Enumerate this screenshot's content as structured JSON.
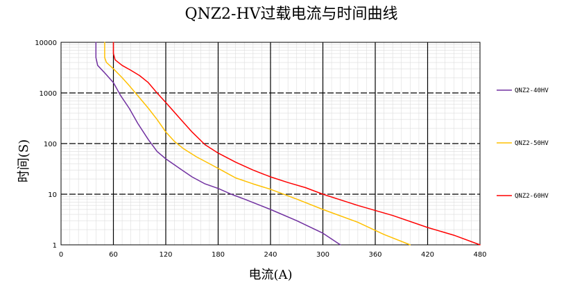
{
  "chart_data": {
    "type": "line",
    "title": "QNZ2-HV过载电流与时间曲线",
    "xlabel": "电流(A)",
    "ylabel": "时间(S)",
    "xscale": "linear",
    "yscale": "log",
    "xlim": [
      0,
      480
    ],
    "ylim": [
      1,
      10000
    ],
    "x_ticks": [
      0,
      60,
      120,
      180,
      240,
      300,
      360,
      420,
      480
    ],
    "x_tick_labels": [
      "0",
      "60",
      "120",
      "180",
      "240",
      "300",
      "360",
      "420",
      "480"
    ],
    "y_ticks": [
      1,
      10,
      100,
      1000,
      10000
    ],
    "y_tick_labels": [
      "1",
      "10",
      "100",
      "1000",
      "10000"
    ],
    "grid": true,
    "legend_position": "right",
    "series": [
      {
        "name": "QNZ2-40HV",
        "color": "#7030a0",
        "points": [
          [
            40,
            10000
          ],
          [
            40,
            5000
          ],
          [
            42,
            3500
          ],
          [
            50,
            2500
          ],
          [
            60,
            1600
          ],
          [
            68,
            900
          ],
          [
            78,
            500
          ],
          [
            88,
            250
          ],
          [
            100,
            120
          ],
          [
            110,
            70
          ],
          [
            120,
            50
          ],
          [
            135,
            33
          ],
          [
            150,
            22
          ],
          [
            165,
            16
          ],
          [
            180,
            13
          ],
          [
            195,
            10
          ],
          [
            210,
            8
          ],
          [
            240,
            5
          ],
          [
            270,
            3
          ],
          [
            300,
            1.7
          ],
          [
            320,
            1
          ]
        ]
      },
      {
        "name": "QNZ2-50HV",
        "color": "#ffc000",
        "points": [
          [
            50,
            10000
          ],
          [
            50,
            5000
          ],
          [
            52,
            4000
          ],
          [
            60,
            3000
          ],
          [
            70,
            2000
          ],
          [
            78,
            1400
          ],
          [
            90,
            800
          ],
          [
            100,
            500
          ],
          [
            110,
            300
          ],
          [
            120,
            170
          ],
          [
            130,
            110
          ],
          [
            140,
            80
          ],
          [
            155,
            55
          ],
          [
            170,
            40
          ],
          [
            185,
            29
          ],
          [
            200,
            21
          ],
          [
            220,
            16
          ],
          [
            240,
            12.5
          ],
          [
            270,
            8
          ],
          [
            300,
            5
          ],
          [
            340,
            2.8
          ],
          [
            370,
            1.6
          ],
          [
            400,
            1
          ]
        ]
      },
      {
        "name": "QNZ2-60HV",
        "color": "#ff0000",
        "points": [
          [
            60,
            10000
          ],
          [
            60,
            6000
          ],
          [
            62,
            4500
          ],
          [
            70,
            3500
          ],
          [
            80,
            2800
          ],
          [
            90,
            2200
          ],
          [
            100,
            1600
          ],
          [
            110,
            1000
          ],
          [
            120,
            650
          ],
          [
            135,
            330
          ],
          [
            150,
            170
          ],
          [
            165,
            95
          ],
          [
            180,
            65
          ],
          [
            200,
            43
          ],
          [
            220,
            30
          ],
          [
            240,
            22
          ],
          [
            260,
            17
          ],
          [
            280,
            13.5
          ],
          [
            300,
            10
          ],
          [
            340,
            6
          ],
          [
            380,
            3.8
          ],
          [
            420,
            2.2
          ],
          [
            450,
            1.55
          ],
          [
            480,
            1
          ]
        ]
      }
    ]
  }
}
